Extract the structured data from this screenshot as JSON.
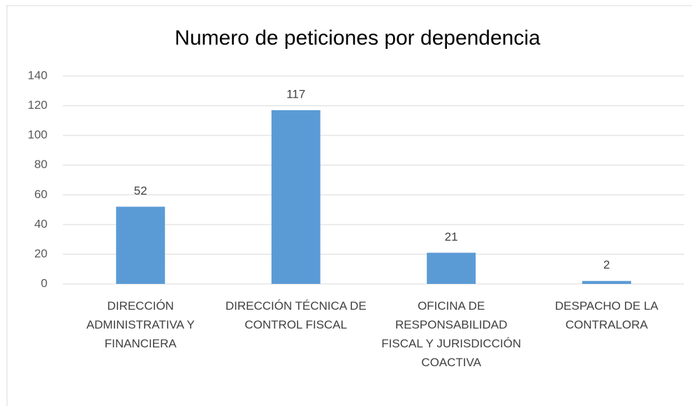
{
  "chart_data": {
    "type": "bar",
    "title": "Numero de peticiones por dependencia",
    "categories": [
      "DIRECCIÓN ADMINISTRATIVA Y FINANCIERA",
      "DIRECCIÓN TÉCNICA DE CONTROL FISCAL",
      "OFICINA DE RESPONSABILIDAD FISCAL Y JURISDICCIÓN COACTIVA",
      "DESPACHO DE LA CONTRALORA"
    ],
    "values": [
      52,
      117,
      21,
      2
    ],
    "color": "#5b9bd5",
    "ylim": [
      0,
      140
    ],
    "yticks": [
      0,
      20,
      40,
      60,
      80,
      100,
      120,
      140
    ],
    "grid": true
  }
}
